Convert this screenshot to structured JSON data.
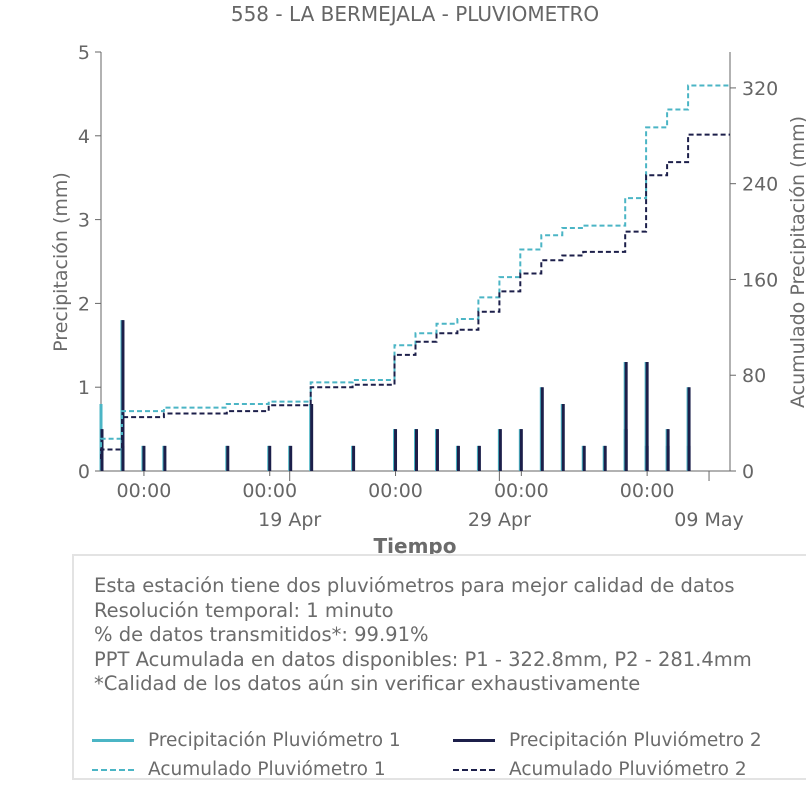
{
  "colors": {
    "p1": "#4bb5c5",
    "p2": "#1c1f4a",
    "axis": "#666666",
    "text": "#6b6b6b"
  },
  "chart_data": {
    "type": "line",
    "title": "558 - LA BERMEJALA - PLUVIOMETRO",
    "xlabel": "Tiempo",
    "ylabel": "Precipitación (mm)",
    "y2label": "Acumulado Precipitación (mm)",
    "xlim": [
      "2023-04-10",
      "2023-05-10"
    ],
    "ylim": [
      0,
      5
    ],
    "y2lim": [
      0,
      350
    ],
    "yticks": [
      "0",
      "1",
      "2",
      "3",
      "4",
      "5"
    ],
    "y2ticks": [
      "0",
      "80",
      "160",
      "240",
      "320"
    ],
    "xticks_time": [
      "00:00",
      "00:00",
      "00:00",
      "00:00",
      "00:00"
    ],
    "xticks_date": [
      "19 Apr",
      "29 Apr",
      "09 May"
    ],
    "grid": false,
    "series": [
      {
        "name": "Precipitación Pluviómetro 1",
        "style": "solid",
        "axis": "left",
        "points": [
          [
            "2023-04-10",
            0.8
          ],
          [
            "2023-04-11",
            0.3
          ],
          [
            "2023-04-11",
            1.8
          ],
          [
            "2023-04-12",
            0.3
          ],
          [
            "2023-04-13",
            0.3
          ],
          [
            "2023-04-16",
            0.3
          ],
          [
            "2023-04-18",
            0.3
          ],
          [
            "2023-04-19",
            0.3
          ],
          [
            "2023-04-20",
            0.8
          ],
          [
            "2023-04-22",
            0.3
          ],
          [
            "2023-04-24",
            0.5
          ],
          [
            "2023-04-25",
            0.5
          ],
          [
            "2023-04-26",
            0.5
          ],
          [
            "2023-04-27",
            0.3
          ],
          [
            "2023-04-28",
            0.3
          ],
          [
            "2023-04-29",
            0.5
          ],
          [
            "2023-04-30",
            0.5
          ],
          [
            "2023-05-01",
            1.0
          ],
          [
            "2023-05-02",
            0.8
          ],
          [
            "2023-05-03",
            0.3
          ],
          [
            "2023-05-04",
            0.3
          ],
          [
            "2023-05-05",
            1.3
          ],
          [
            "2023-05-05",
            0.5
          ],
          [
            "2023-05-06",
            0.3
          ],
          [
            "2023-05-06",
            1.3
          ],
          [
            "2023-05-07",
            0.3
          ],
          [
            "2023-05-07",
            0.5
          ],
          [
            "2023-05-08",
            1.0
          ],
          [
            "2023-05-08",
            0.3
          ]
        ]
      },
      {
        "name": "Precipitación Pluviómetro 2",
        "style": "solid",
        "axis": "left",
        "points": [
          [
            "2023-04-10",
            0.5
          ],
          [
            "2023-04-11",
            0.3
          ],
          [
            "2023-04-11",
            1.8
          ],
          [
            "2023-04-12",
            0.3
          ],
          [
            "2023-04-13",
            0.3
          ],
          [
            "2023-04-16",
            0.3
          ],
          [
            "2023-04-18",
            0.3
          ],
          [
            "2023-04-19",
            0.3
          ],
          [
            "2023-04-20",
            0.8
          ],
          [
            "2023-04-22",
            0.3
          ],
          [
            "2023-04-24",
            0.5
          ],
          [
            "2023-04-25",
            0.5
          ],
          [
            "2023-04-26",
            0.5
          ],
          [
            "2023-04-27",
            0.3
          ],
          [
            "2023-04-28",
            0.3
          ],
          [
            "2023-04-29",
            0.5
          ],
          [
            "2023-04-30",
            0.5
          ],
          [
            "2023-05-01",
            1.0
          ],
          [
            "2023-05-02",
            0.8
          ],
          [
            "2023-05-03",
            0.3
          ],
          [
            "2023-05-04",
            0.3
          ],
          [
            "2023-05-05",
            1.3
          ],
          [
            "2023-05-05",
            0.5
          ],
          [
            "2023-05-06",
            0.3
          ],
          [
            "2023-05-06",
            1.3
          ],
          [
            "2023-05-07",
            0.3
          ],
          [
            "2023-05-07",
            0.5
          ],
          [
            "2023-05-08",
            1.0
          ],
          [
            "2023-05-08",
            0.3
          ]
        ]
      },
      {
        "name": "Acumulado Pluviómetro 1",
        "style": "dashed",
        "axis": "right",
        "points": [
          [
            "2023-04-10",
            20
          ],
          [
            "2023-04-10",
            27
          ],
          [
            "2023-04-11",
            27
          ],
          [
            "2023-04-11",
            50
          ],
          [
            "2023-04-13",
            50
          ],
          [
            "2023-04-13",
            53
          ],
          [
            "2023-04-16",
            53
          ],
          [
            "2023-04-16",
            56
          ],
          [
            "2023-04-18",
            56
          ],
          [
            "2023-04-18",
            58
          ],
          [
            "2023-04-20",
            58
          ],
          [
            "2023-04-20",
            74
          ],
          [
            "2023-04-22",
            74
          ],
          [
            "2023-04-22",
            76
          ],
          [
            "2023-04-24",
            76
          ],
          [
            "2023-04-24",
            105
          ],
          [
            "2023-04-25",
            105
          ],
          [
            "2023-04-25",
            115
          ],
          [
            "2023-04-26",
            115
          ],
          [
            "2023-04-26",
            123
          ],
          [
            "2023-04-27",
            123
          ],
          [
            "2023-04-27",
            127
          ],
          [
            "2023-04-28",
            127
          ],
          [
            "2023-04-28",
            145
          ],
          [
            "2023-04-29",
            145
          ],
          [
            "2023-04-29",
            162
          ],
          [
            "2023-04-30",
            162
          ],
          [
            "2023-04-30",
            185
          ],
          [
            "2023-05-01",
            185
          ],
          [
            "2023-05-01",
            197
          ],
          [
            "2023-05-02",
            197
          ],
          [
            "2023-05-02",
            203
          ],
          [
            "2023-05-03",
            203
          ],
          [
            "2023-05-03",
            205
          ],
          [
            "2023-05-05",
            205
          ],
          [
            "2023-05-05",
            228
          ],
          [
            "2023-05-06",
            228
          ],
          [
            "2023-05-06",
            287
          ],
          [
            "2023-05-07",
            287
          ],
          [
            "2023-05-07",
            302
          ],
          [
            "2023-05-08",
            302
          ],
          [
            "2023-05-08",
            322
          ],
          [
            "2023-05-10",
            322
          ]
        ]
      },
      {
        "name": "Acumulado Pluviómetro 2",
        "style": "dashed",
        "axis": "right",
        "points": [
          [
            "2023-04-10",
            10
          ],
          [
            "2023-04-10",
            18
          ],
          [
            "2023-04-11",
            18
          ],
          [
            "2023-04-11",
            45
          ],
          [
            "2023-04-13",
            45
          ],
          [
            "2023-04-13",
            48
          ],
          [
            "2023-04-16",
            48
          ],
          [
            "2023-04-16",
            50
          ],
          [
            "2023-04-18",
            50
          ],
          [
            "2023-04-18",
            55
          ],
          [
            "2023-04-20",
            55
          ],
          [
            "2023-04-20",
            70
          ],
          [
            "2023-04-22",
            70
          ],
          [
            "2023-04-22",
            72
          ],
          [
            "2023-04-24",
            72
          ],
          [
            "2023-04-24",
            97
          ],
          [
            "2023-04-25",
            97
          ],
          [
            "2023-04-25",
            108
          ],
          [
            "2023-04-26",
            108
          ],
          [
            "2023-04-26",
            115
          ],
          [
            "2023-04-27",
            115
          ],
          [
            "2023-04-27",
            118
          ],
          [
            "2023-04-28",
            118
          ],
          [
            "2023-04-28",
            133
          ],
          [
            "2023-04-29",
            133
          ],
          [
            "2023-04-29",
            150
          ],
          [
            "2023-04-30",
            150
          ],
          [
            "2023-04-30",
            165
          ],
          [
            "2023-05-01",
            165
          ],
          [
            "2023-05-01",
            176
          ],
          [
            "2023-05-02",
            176
          ],
          [
            "2023-05-02",
            180
          ],
          [
            "2023-05-03",
            180
          ],
          [
            "2023-05-03",
            183
          ],
          [
            "2023-05-05",
            183
          ],
          [
            "2023-05-05",
            200
          ],
          [
            "2023-05-06",
            200
          ],
          [
            "2023-05-06",
            247
          ],
          [
            "2023-05-07",
            247
          ],
          [
            "2023-05-07",
            258
          ],
          [
            "2023-05-08",
            258
          ],
          [
            "2023-05-08",
            281
          ],
          [
            "2023-05-10",
            281
          ]
        ]
      }
    ]
  },
  "info": {
    "line1": "Esta estación tiene dos pluviómetros para mejor calidad de datos",
    "line2": "Resolución temporal: 1 minuto",
    "line3": "% de datos transmitidos*: 99.91%",
    "line4": "PPT Acumulada en datos disponibles: P1 - 322.8mm, P2 - 281.4mm",
    "line5": "*Calidad de los datos aún sin verificar exhaustivamente"
  },
  "legend": {
    "p1_precip": "Precipitación Pluviómetro 1",
    "p2_precip": "Precipitación Pluviómetro 2",
    "p1_acum": "Acumulado Pluviómetro 1",
    "p2_acum": "Acumulado Pluviómetro 2"
  }
}
